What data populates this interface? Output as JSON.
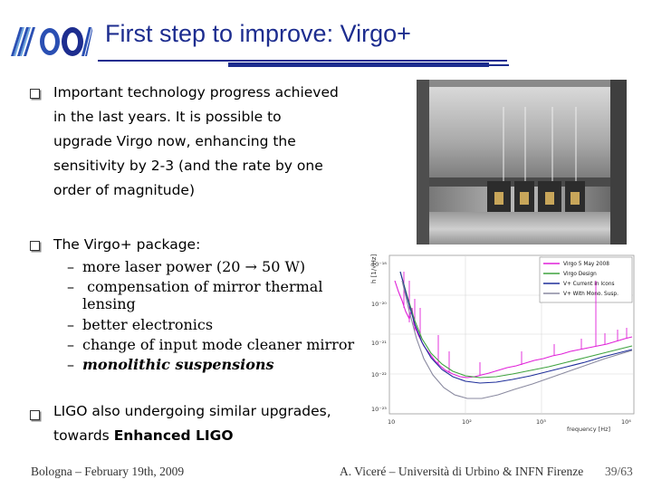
{
  "slide": {
    "title": "First step to improve: Virgo+"
  },
  "bullets": {
    "b1": {
      "lines": [
        "Important technology progress achieved",
        "in the last years. It is possible to",
        "upgrade Virgo now, enhancing the",
        "sensitivity by 2-3 (and the rate by one",
        "order of magnitude)"
      ]
    },
    "b2": {
      "heading": "The Virgo+ package:",
      "items": {
        "i1": "more laser power (20 → 50 W)",
        "i2a": " compensation of mirror thermal",
        "i2b": "lensing",
        "i3": "better electronics",
        "i4": "change of input mode cleaner mirror",
        "i5": "monolithic suspensions"
      },
      "dash": "–"
    },
    "b3": {
      "line1": "LIGO also undergoing similar upgrades,",
      "line2_prefix": "towards ",
      "line2_bold": "Enhanced LIGO"
    }
  },
  "figure": {
    "ylabel": "h [1/√Hz]",
    "xlabel": "frequency [Hz]",
    "legend": {
      "l1": "Virgo 5 May 2008",
      "l2": "Virgo Design",
      "l3": "V+ Current in Icons",
      "l4": "V+ With Mono. Susp."
    },
    "yticks": {
      "t1": "10⁻¹⁸",
      "t2": "10⁻²⁰",
      "t3": "10⁻²¹",
      "t4": "10⁻²²",
      "t5": "10⁻²³"
    },
    "xticks": {
      "t1": "10",
      "t2": "10²",
      "t3": "10³",
      "t4": "10⁴"
    },
    "colors": {
      "measured": "#e020d8",
      "design": "#3fa33f",
      "current": "#1f2f9a",
      "mono": "#8a8aa0"
    }
  },
  "footer": {
    "left": "Bologna – February 19th, 2009",
    "right": "A. Viceré – Università di Urbino & INFN Firenze",
    "page": "39/63"
  }
}
